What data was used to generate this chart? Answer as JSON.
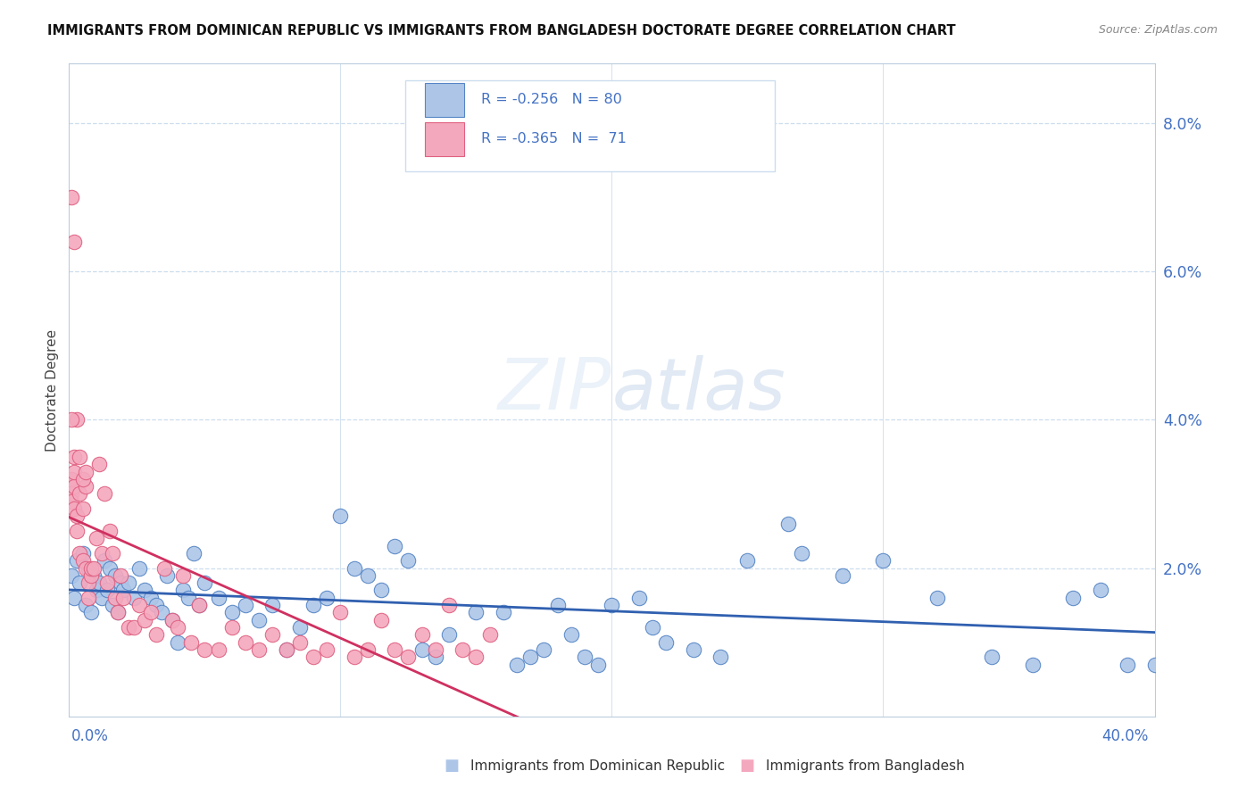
{
  "title": "IMMIGRANTS FROM DOMINICAN REPUBLIC VS IMMIGRANTS FROM BANGLADESH DOCTORATE DEGREE CORRELATION CHART",
  "source": "Source: ZipAtlas.com",
  "ylabel": "Doctorate Degree",
  "right_yticks": [
    "8.0%",
    "6.0%",
    "4.0%",
    "2.0%"
  ],
  "right_ytick_vals": [
    0.08,
    0.06,
    0.04,
    0.02
  ],
  "xmin": 0.0,
  "xmax": 0.4,
  "ymin": 0.0,
  "ymax": 0.088,
  "color_blue": "#adc6e8",
  "color_pink": "#f4a8be",
  "color_blue_line": "#3060b0",
  "color_pink_line": "#d03060",
  "color_blue_dark": "#5585c5",
  "color_pink_dark": "#e06080",
  "background": "#ffffff",
  "label_blue": "Immigrants from Dominican Republic",
  "label_pink": "Immigrants from Bangladesh",
  "blue_points": [
    [
      0.001,
      0.019
    ],
    [
      0.002,
      0.016
    ],
    [
      0.003,
      0.021
    ],
    [
      0.004,
      0.018
    ],
    [
      0.005,
      0.022
    ],
    [
      0.006,
      0.015
    ],
    [
      0.007,
      0.02
    ],
    [
      0.008,
      0.014
    ],
    [
      0.009,
      0.019
    ],
    [
      0.01,
      0.017
    ],
    [
      0.011,
      0.018
    ],
    [
      0.012,
      0.016
    ],
    [
      0.013,
      0.021
    ],
    [
      0.014,
      0.017
    ],
    [
      0.015,
      0.02
    ],
    [
      0.016,
      0.015
    ],
    [
      0.017,
      0.019
    ],
    [
      0.018,
      0.014
    ],
    [
      0.019,
      0.018
    ],
    [
      0.02,
      0.017
    ],
    [
      0.022,
      0.018
    ],
    [
      0.024,
      0.016
    ],
    [
      0.026,
      0.02
    ],
    [
      0.028,
      0.017
    ],
    [
      0.03,
      0.016
    ],
    [
      0.032,
      0.015
    ],
    [
      0.034,
      0.014
    ],
    [
      0.036,
      0.019
    ],
    [
      0.038,
      0.013
    ],
    [
      0.04,
      0.01
    ],
    [
      0.042,
      0.017
    ],
    [
      0.044,
      0.016
    ],
    [
      0.046,
      0.022
    ],
    [
      0.048,
      0.015
    ],
    [
      0.05,
      0.018
    ],
    [
      0.055,
      0.016
    ],
    [
      0.06,
      0.014
    ],
    [
      0.065,
      0.015
    ],
    [
      0.07,
      0.013
    ],
    [
      0.075,
      0.015
    ],
    [
      0.08,
      0.009
    ],
    [
      0.085,
      0.012
    ],
    [
      0.09,
      0.015
    ],
    [
      0.095,
      0.016
    ],
    [
      0.1,
      0.027
    ],
    [
      0.105,
      0.02
    ],
    [
      0.11,
      0.019
    ],
    [
      0.115,
      0.017
    ],
    [
      0.12,
      0.023
    ],
    [
      0.125,
      0.021
    ],
    [
      0.13,
      0.009
    ],
    [
      0.135,
      0.008
    ],
    [
      0.14,
      0.011
    ],
    [
      0.15,
      0.014
    ],
    [
      0.16,
      0.014
    ],
    [
      0.165,
      0.007
    ],
    [
      0.17,
      0.008
    ],
    [
      0.175,
      0.009
    ],
    [
      0.18,
      0.015
    ],
    [
      0.185,
      0.011
    ],
    [
      0.19,
      0.008
    ],
    [
      0.195,
      0.007
    ],
    [
      0.2,
      0.015
    ],
    [
      0.21,
      0.016
    ],
    [
      0.215,
      0.012
    ],
    [
      0.22,
      0.01
    ],
    [
      0.23,
      0.009
    ],
    [
      0.24,
      0.008
    ],
    [
      0.25,
      0.021
    ],
    [
      0.265,
      0.026
    ],
    [
      0.27,
      0.022
    ],
    [
      0.285,
      0.019
    ],
    [
      0.3,
      0.021
    ],
    [
      0.32,
      0.016
    ],
    [
      0.34,
      0.008
    ],
    [
      0.355,
      0.007
    ],
    [
      0.37,
      0.016
    ],
    [
      0.38,
      0.017
    ],
    [
      0.39,
      0.007
    ],
    [
      0.4,
      0.007
    ]
  ],
  "pink_points": [
    [
      0.001,
      0.03
    ],
    [
      0.001,
      0.029
    ],
    [
      0.001,
      0.032
    ],
    [
      0.002,
      0.028
    ],
    [
      0.002,
      0.031
    ],
    [
      0.002,
      0.033
    ],
    [
      0.003,
      0.027
    ],
    [
      0.003,
      0.025
    ],
    [
      0.004,
      0.03
    ],
    [
      0.004,
      0.022
    ],
    [
      0.005,
      0.021
    ],
    [
      0.005,
      0.028
    ],
    [
      0.006,
      0.02
    ],
    [
      0.006,
      0.031
    ],
    [
      0.007,
      0.018
    ],
    [
      0.007,
      0.016
    ],
    [
      0.008,
      0.019
    ],
    [
      0.008,
      0.02
    ],
    [
      0.009,
      0.02
    ],
    [
      0.01,
      0.024
    ],
    [
      0.011,
      0.034
    ],
    [
      0.012,
      0.022
    ],
    [
      0.013,
      0.03
    ],
    [
      0.014,
      0.018
    ],
    [
      0.015,
      0.025
    ],
    [
      0.016,
      0.022
    ],
    [
      0.017,
      0.016
    ],
    [
      0.018,
      0.014
    ],
    [
      0.019,
      0.019
    ],
    [
      0.02,
      0.016
    ],
    [
      0.022,
      0.012
    ],
    [
      0.024,
      0.012
    ],
    [
      0.026,
      0.015
    ],
    [
      0.028,
      0.013
    ],
    [
      0.03,
      0.014
    ],
    [
      0.032,
      0.011
    ],
    [
      0.035,
      0.02
    ],
    [
      0.038,
      0.013
    ],
    [
      0.04,
      0.012
    ],
    [
      0.042,
      0.019
    ],
    [
      0.045,
      0.01
    ],
    [
      0.048,
      0.015
    ],
    [
      0.05,
      0.009
    ],
    [
      0.055,
      0.009
    ],
    [
      0.06,
      0.012
    ],
    [
      0.065,
      0.01
    ],
    [
      0.07,
      0.009
    ],
    [
      0.075,
      0.011
    ],
    [
      0.08,
      0.009
    ],
    [
      0.085,
      0.01
    ],
    [
      0.09,
      0.008
    ],
    [
      0.095,
      0.009
    ],
    [
      0.1,
      0.014
    ],
    [
      0.105,
      0.008
    ],
    [
      0.11,
      0.009
    ],
    [
      0.115,
      0.013
    ],
    [
      0.12,
      0.009
    ],
    [
      0.125,
      0.008
    ],
    [
      0.13,
      0.011
    ],
    [
      0.135,
      0.009
    ],
    [
      0.14,
      0.015
    ],
    [
      0.145,
      0.009
    ],
    [
      0.15,
      0.008
    ],
    [
      0.155,
      0.011
    ],
    [
      0.003,
      0.04
    ],
    [
      0.002,
      0.035
    ],
    [
      0.004,
      0.035
    ],
    [
      0.002,
      0.064
    ],
    [
      0.001,
      0.07
    ],
    [
      0.005,
      0.032
    ],
    [
      0.006,
      0.033
    ],
    [
      0.001,
      0.04
    ]
  ]
}
